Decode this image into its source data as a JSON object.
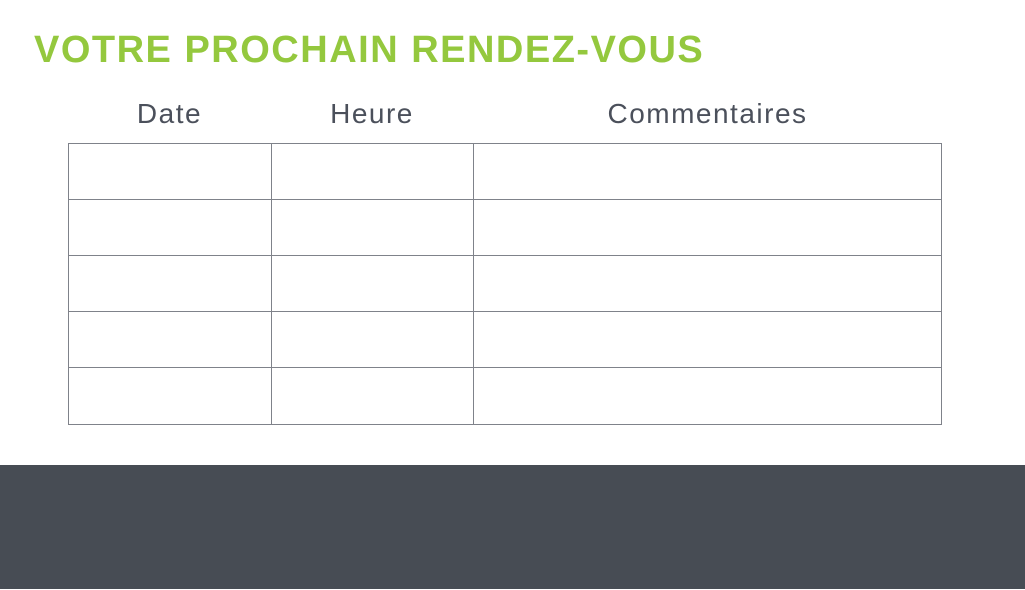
{
  "header": {
    "title": "VOTRE PROCHAIN RENDEZ-VOUS"
  },
  "colors": {
    "accent_green": "#94C83E",
    "footer_dark": "#474C54",
    "table_border": "#7F828A",
    "header_text": "#4B505B"
  },
  "table": {
    "columns": [
      {
        "label": "Date"
      },
      {
        "label": "Heure"
      },
      {
        "label": "Commentaires"
      }
    ],
    "rows": [
      {
        "cells": [
          "",
          "",
          ""
        ]
      },
      {
        "cells": [
          "",
          "",
          ""
        ]
      },
      {
        "cells": [
          "",
          "",
          ""
        ]
      },
      {
        "cells": [
          "",
          "",
          ""
        ]
      },
      {
        "cells": [
          "",
          "",
          ""
        ]
      }
    ]
  },
  "footer": {
    "content": ""
  }
}
